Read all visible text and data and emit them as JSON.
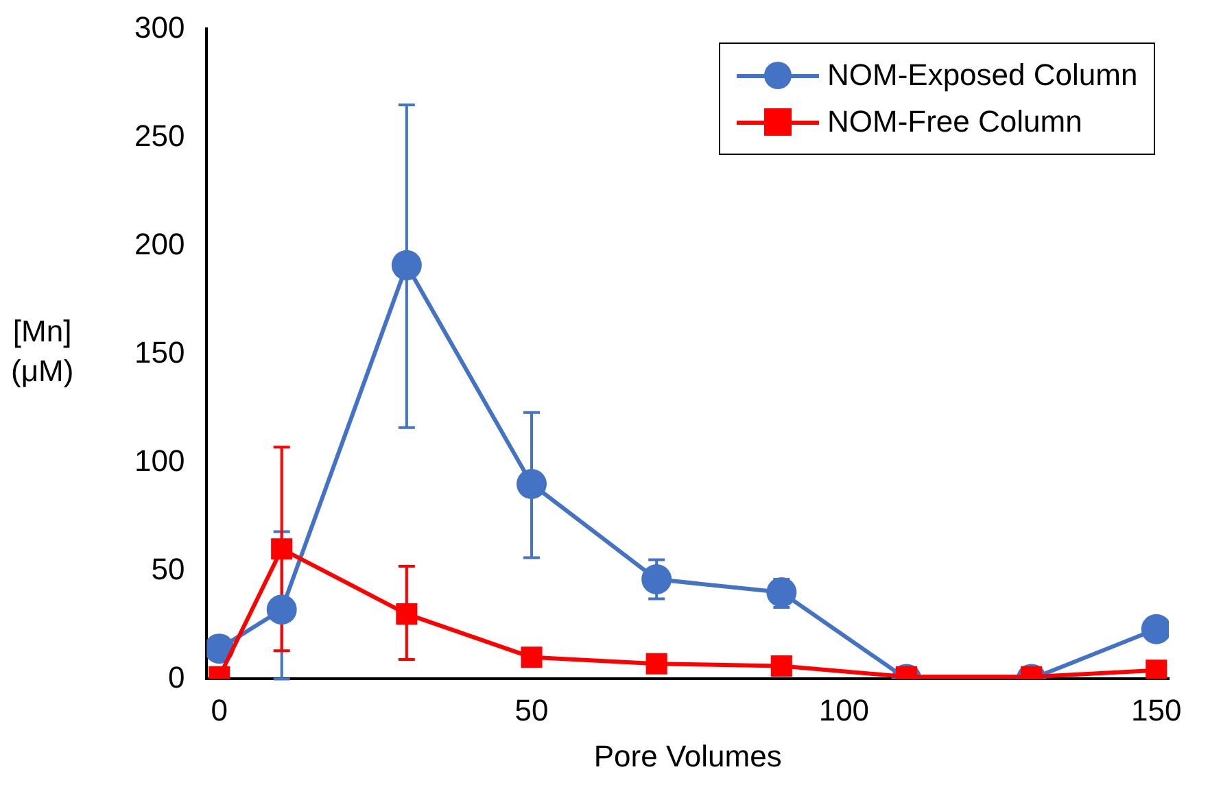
{
  "chart_data": {
    "type": "line",
    "xlabel": "Pore Volumes",
    "ylabel": "[Mn]\n(μM)",
    "x": [
      0,
      10,
      30,
      50,
      70,
      90,
      110,
      130,
      150
    ],
    "xlim": [
      -2,
      152
    ],
    "xticks": [
      0,
      50,
      100,
      150
    ],
    "ylim": [
      0,
      300
    ],
    "yticks": [
      0,
      50,
      100,
      150,
      200,
      250,
      300
    ],
    "grid": false,
    "legend": "top right",
    "line_style": "solid",
    "series": [
      {
        "name": "NOM-Exposed Column",
        "color": "#4472c4",
        "marker": "circle",
        "values": [
          14,
          32,
          191,
          90,
          46,
          40,
          0,
          0,
          23
        ],
        "errors": [
          null,
          [
            0,
            68
          ],
          [
            116,
            265
          ],
          [
            56,
            123
          ],
          [
            37,
            55
          ],
          [
            33,
            46
          ],
          null,
          null,
          null
        ]
      },
      {
        "name": "NOM-Free Column",
        "color": "#ff0000",
        "marker": "square",
        "values": [
          1,
          60,
          30,
          10,
          7,
          6,
          1,
          1,
          4
        ],
        "errors": [
          null,
          [
            13,
            107
          ],
          [
            9,
            52
          ],
          null,
          null,
          null,
          null,
          null,
          null
        ]
      }
    ]
  }
}
